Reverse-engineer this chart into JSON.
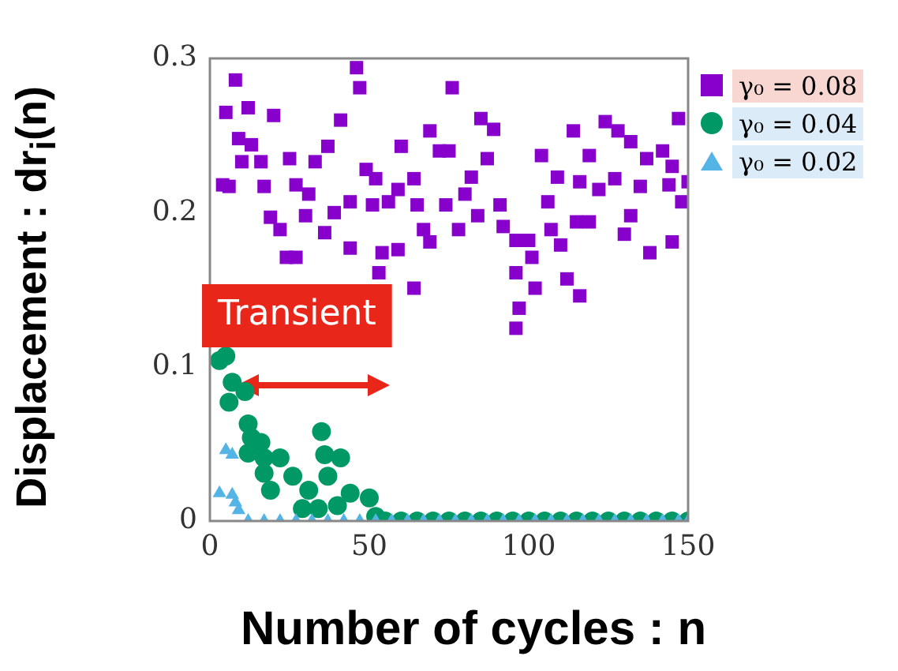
{
  "chart_data": {
    "type": "scatter",
    "xlabel": "Number of cycles : n",
    "ylabel": "Displacement : dr$_{i}$(n)",
    "xlim": [
      0,
      150
    ],
    "ylim": [
      0,
      0.3
    ],
    "xticks": [
      0,
      50,
      100,
      150
    ],
    "yticks": [
      0,
      0.1,
      0.2,
      0.3
    ],
    "grid": false,
    "legend": "right",
    "annotations": [
      "Transient"
    ],
    "series": [
      {
        "name": "γ₀ = 0.08",
        "color": "#8800cc",
        "marker": "square",
        "x": [
          8,
          5,
          12,
          20,
          46,
          47,
          41,
          9,
          13,
          16,
          10,
          4,
          6,
          17,
          25,
          33,
          37,
          27,
          31,
          30,
          19,
          22,
          24,
          27,
          36,
          39,
          44,
          44,
          49,
          52,
          51,
          54,
          53,
          59,
          64,
          60,
          69,
          72,
          59,
          64,
          67,
          69,
          65,
          56,
          76,
          85,
          89,
          75,
          87,
          104,
          114,
          124,
          128,
          132,
          147,
          119,
          137,
          142,
          145,
          150,
          148,
          144,
          135,
          127,
          122,
          109,
          116,
          106,
          119,
          132,
          130,
          138,
          145,
          82,
          80,
          74,
          78,
          84,
          91,
          92,
          96,
          100,
          107,
          110,
          115,
          96,
          102,
          97,
          96,
          112,
          116,
          101
        ],
        "values": [
          0.286,
          0.265,
          0.268,
          0.263,
          0.294,
          0.281,
          0.26,
          0.248,
          0.244,
          0.233,
          0.233,
          0.218,
          0.217,
          0.217,
          0.235,
          0.233,
          0.243,
          0.218,
          0.212,
          0.198,
          0.197,
          0.189,
          0.171,
          0.171,
          0.187,
          0.2,
          0.207,
          0.177,
          0.228,
          0.222,
          0.205,
          0.174,
          0.161,
          0.176,
          0.151,
          0.243,
          0.253,
          0.24,
          0.215,
          0.222,
          0.189,
          0.181,
          0.205,
          0.207,
          0.281,
          0.261,
          0.254,
          0.24,
          0.235,
          0.237,
          0.253,
          0.259,
          0.253,
          0.246,
          0.261,
          0.237,
          0.235,
          0.24,
          0.23,
          0.22,
          0.207,
          0.218,
          0.217,
          0.222,
          0.215,
          0.223,
          0.22,
          0.207,
          0.194,
          0.198,
          0.186,
          0.174,
          0.181,
          0.223,
          0.212,
          0.205,
          0.189,
          0.198,
          0.205,
          0.191,
          0.182,
          0.182,
          0.189,
          0.179,
          0.194,
          0.161,
          0.151,
          0.138,
          0.125,
          0.157,
          0.146,
          0.171
        ]
      },
      {
        "name": "γ₀ = 0.04",
        "color": "#009966",
        "marker": "circle",
        "x": [
          3,
          5,
          7,
          6,
          11,
          12,
          13,
          16,
          12,
          17,
          22,
          17,
          19,
          26,
          31,
          35,
          36,
          41,
          37,
          44,
          50,
          29,
          34,
          40,
          52,
          55,
          60,
          65,
          70,
          75,
          80,
          85,
          90,
          95,
          100,
          105,
          110,
          115,
          120,
          125,
          130,
          135,
          140,
          145,
          150
        ],
        "values": [
          0.104,
          0.107,
          0.09,
          0.077,
          0.084,
          0.063,
          0.054,
          0.051,
          0.044,
          0.041,
          0.041,
          0.031,
          0.02,
          0.029,
          0.02,
          0.058,
          0.043,
          0.041,
          0.029,
          0.018,
          0.015,
          0.008,
          0.008,
          0.01,
          0.003,
          0,
          0,
          0,
          0,
          0,
          0,
          0,
          0,
          0,
          0,
          0,
          0,
          0,
          0,
          0,
          0,
          0,
          0,
          0,
          0
        ]
      },
      {
        "name": "γ₀ = 0.02",
        "color": "#55b4e6",
        "marker": "triangle",
        "x": [
          5,
          7,
          3,
          7,
          8,
          9,
          12,
          17,
          22,
          27,
          32,
          37,
          42,
          47,
          52,
          57,
          62,
          67,
          72,
          77,
          82,
          87,
          92,
          97,
          102,
          107,
          112,
          117,
          122,
          127,
          132,
          137,
          142,
          147,
          150
        ],
        "values": [
          0.046,
          0.043,
          0.018,
          0.017,
          0.012,
          0.007,
          0,
          0,
          0,
          0,
          0,
          0,
          0,
          0,
          0,
          0,
          0,
          0,
          0,
          0,
          0,
          0,
          0,
          0,
          0,
          0,
          0,
          0,
          0,
          0,
          0,
          0,
          0,
          0,
          0
        ]
      }
    ]
  }
}
